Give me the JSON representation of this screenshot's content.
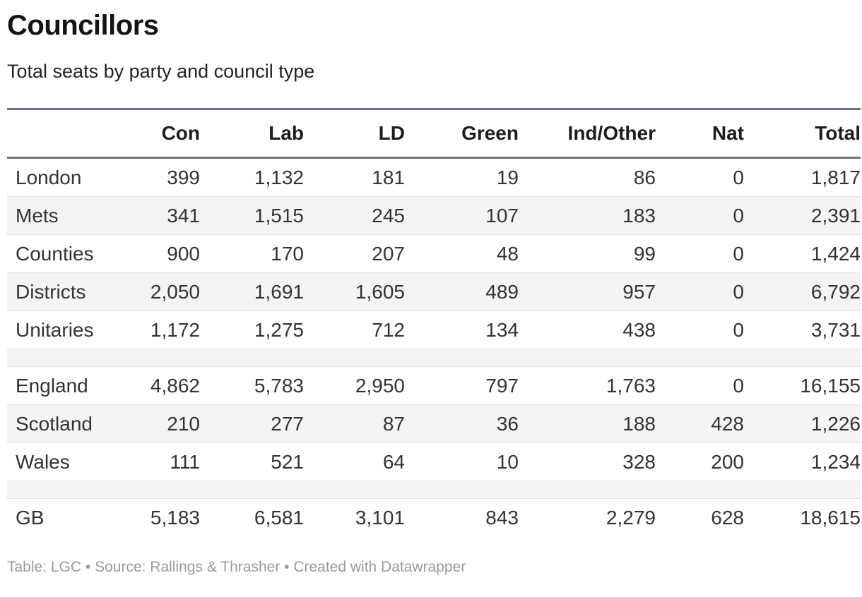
{
  "header": {
    "title": "Councillors",
    "subtitle": "Total seats by party and council type"
  },
  "table": {
    "columns": [
      "",
      "Con",
      "Lab",
      "LD",
      "Green",
      "Ind/Other",
      "Nat",
      "Total"
    ],
    "rows": [
      {
        "label": "London",
        "values": [
          "399",
          "1,132",
          "181",
          "19",
          "86",
          "0",
          "1,817"
        ]
      },
      {
        "label": "Mets",
        "values": [
          "341",
          "1,515",
          "245",
          "107",
          "183",
          "0",
          "2,391"
        ]
      },
      {
        "label": "Counties",
        "values": [
          "900",
          "170",
          "207",
          "48",
          "99",
          "0",
          "1,424"
        ]
      },
      {
        "label": "Districts",
        "values": [
          "2,050",
          "1,691",
          "1,605",
          "489",
          "957",
          "0",
          "6,792"
        ]
      },
      {
        "label": "Unitaries",
        "values": [
          "1,172",
          "1,275",
          "712",
          "134",
          "438",
          "0",
          "3,731"
        ]
      },
      {
        "spacer": true
      },
      {
        "label": "England",
        "values": [
          "4,862",
          "5,783",
          "2,950",
          "797",
          "1,763",
          "0",
          "16,155"
        ]
      },
      {
        "label": "Scotland",
        "values": [
          "210",
          "277",
          "87",
          "36",
          "188",
          "428",
          "1,226"
        ]
      },
      {
        "label": "Wales",
        "values": [
          "111",
          "521",
          "64",
          "10",
          "328",
          "200",
          "1,234"
        ]
      },
      {
        "spacer": true
      },
      {
        "label": "GB",
        "values": [
          "5,183",
          "6,581",
          "3,101",
          "843",
          "2,279",
          "628",
          "18,615"
        ]
      }
    ]
  },
  "footer": {
    "text": "Table: LGC • Source: Rallings & Thrasher • Created with Datawrapper"
  },
  "colors": {
    "rule": "#6a7086",
    "row_divider": "#e3e3e3",
    "zebra_stripe": "#f4f4f4",
    "footer_text": "#9a9a9a",
    "text": "#333333"
  },
  "chart_data": {
    "type": "table",
    "title": "Councillors",
    "subtitle": "Total seats by party and council type",
    "categories": [
      "London",
      "Mets",
      "Counties",
      "Districts",
      "Unitaries",
      "England",
      "Scotland",
      "Wales",
      "GB"
    ],
    "series": [
      {
        "name": "Con",
        "values": [
          399,
          341,
          900,
          2050,
          1172,
          4862,
          210,
          111,
          5183
        ]
      },
      {
        "name": "Lab",
        "values": [
          1132,
          1515,
          170,
          1691,
          1275,
          5783,
          277,
          521,
          6581
        ]
      },
      {
        "name": "LD",
        "values": [
          181,
          245,
          207,
          1605,
          712,
          2950,
          87,
          64,
          3101
        ]
      },
      {
        "name": "Green",
        "values": [
          19,
          107,
          48,
          489,
          134,
          797,
          36,
          10,
          843
        ]
      },
      {
        "name": "Ind/Other",
        "values": [
          86,
          183,
          99,
          957,
          438,
          1763,
          188,
          328,
          2279
        ]
      },
      {
        "name": "Nat",
        "values": [
          0,
          0,
          0,
          0,
          0,
          0,
          428,
          200,
          628
        ]
      },
      {
        "name": "Total",
        "values": [
          1817,
          2391,
          1424,
          6792,
          3731,
          16155,
          1226,
          1234,
          18615
        ]
      }
    ],
    "row_groups": [
      {
        "name": "council-types",
        "rows": [
          "London",
          "Mets",
          "Counties",
          "Districts",
          "Unitaries"
        ]
      },
      {
        "name": "nations",
        "rows": [
          "England",
          "Scotland",
          "Wales"
        ]
      },
      {
        "name": "total",
        "rows": [
          "GB"
        ]
      }
    ],
    "source": "Table: LGC • Source: Rallings & Thrasher • Created with Datawrapper"
  }
}
